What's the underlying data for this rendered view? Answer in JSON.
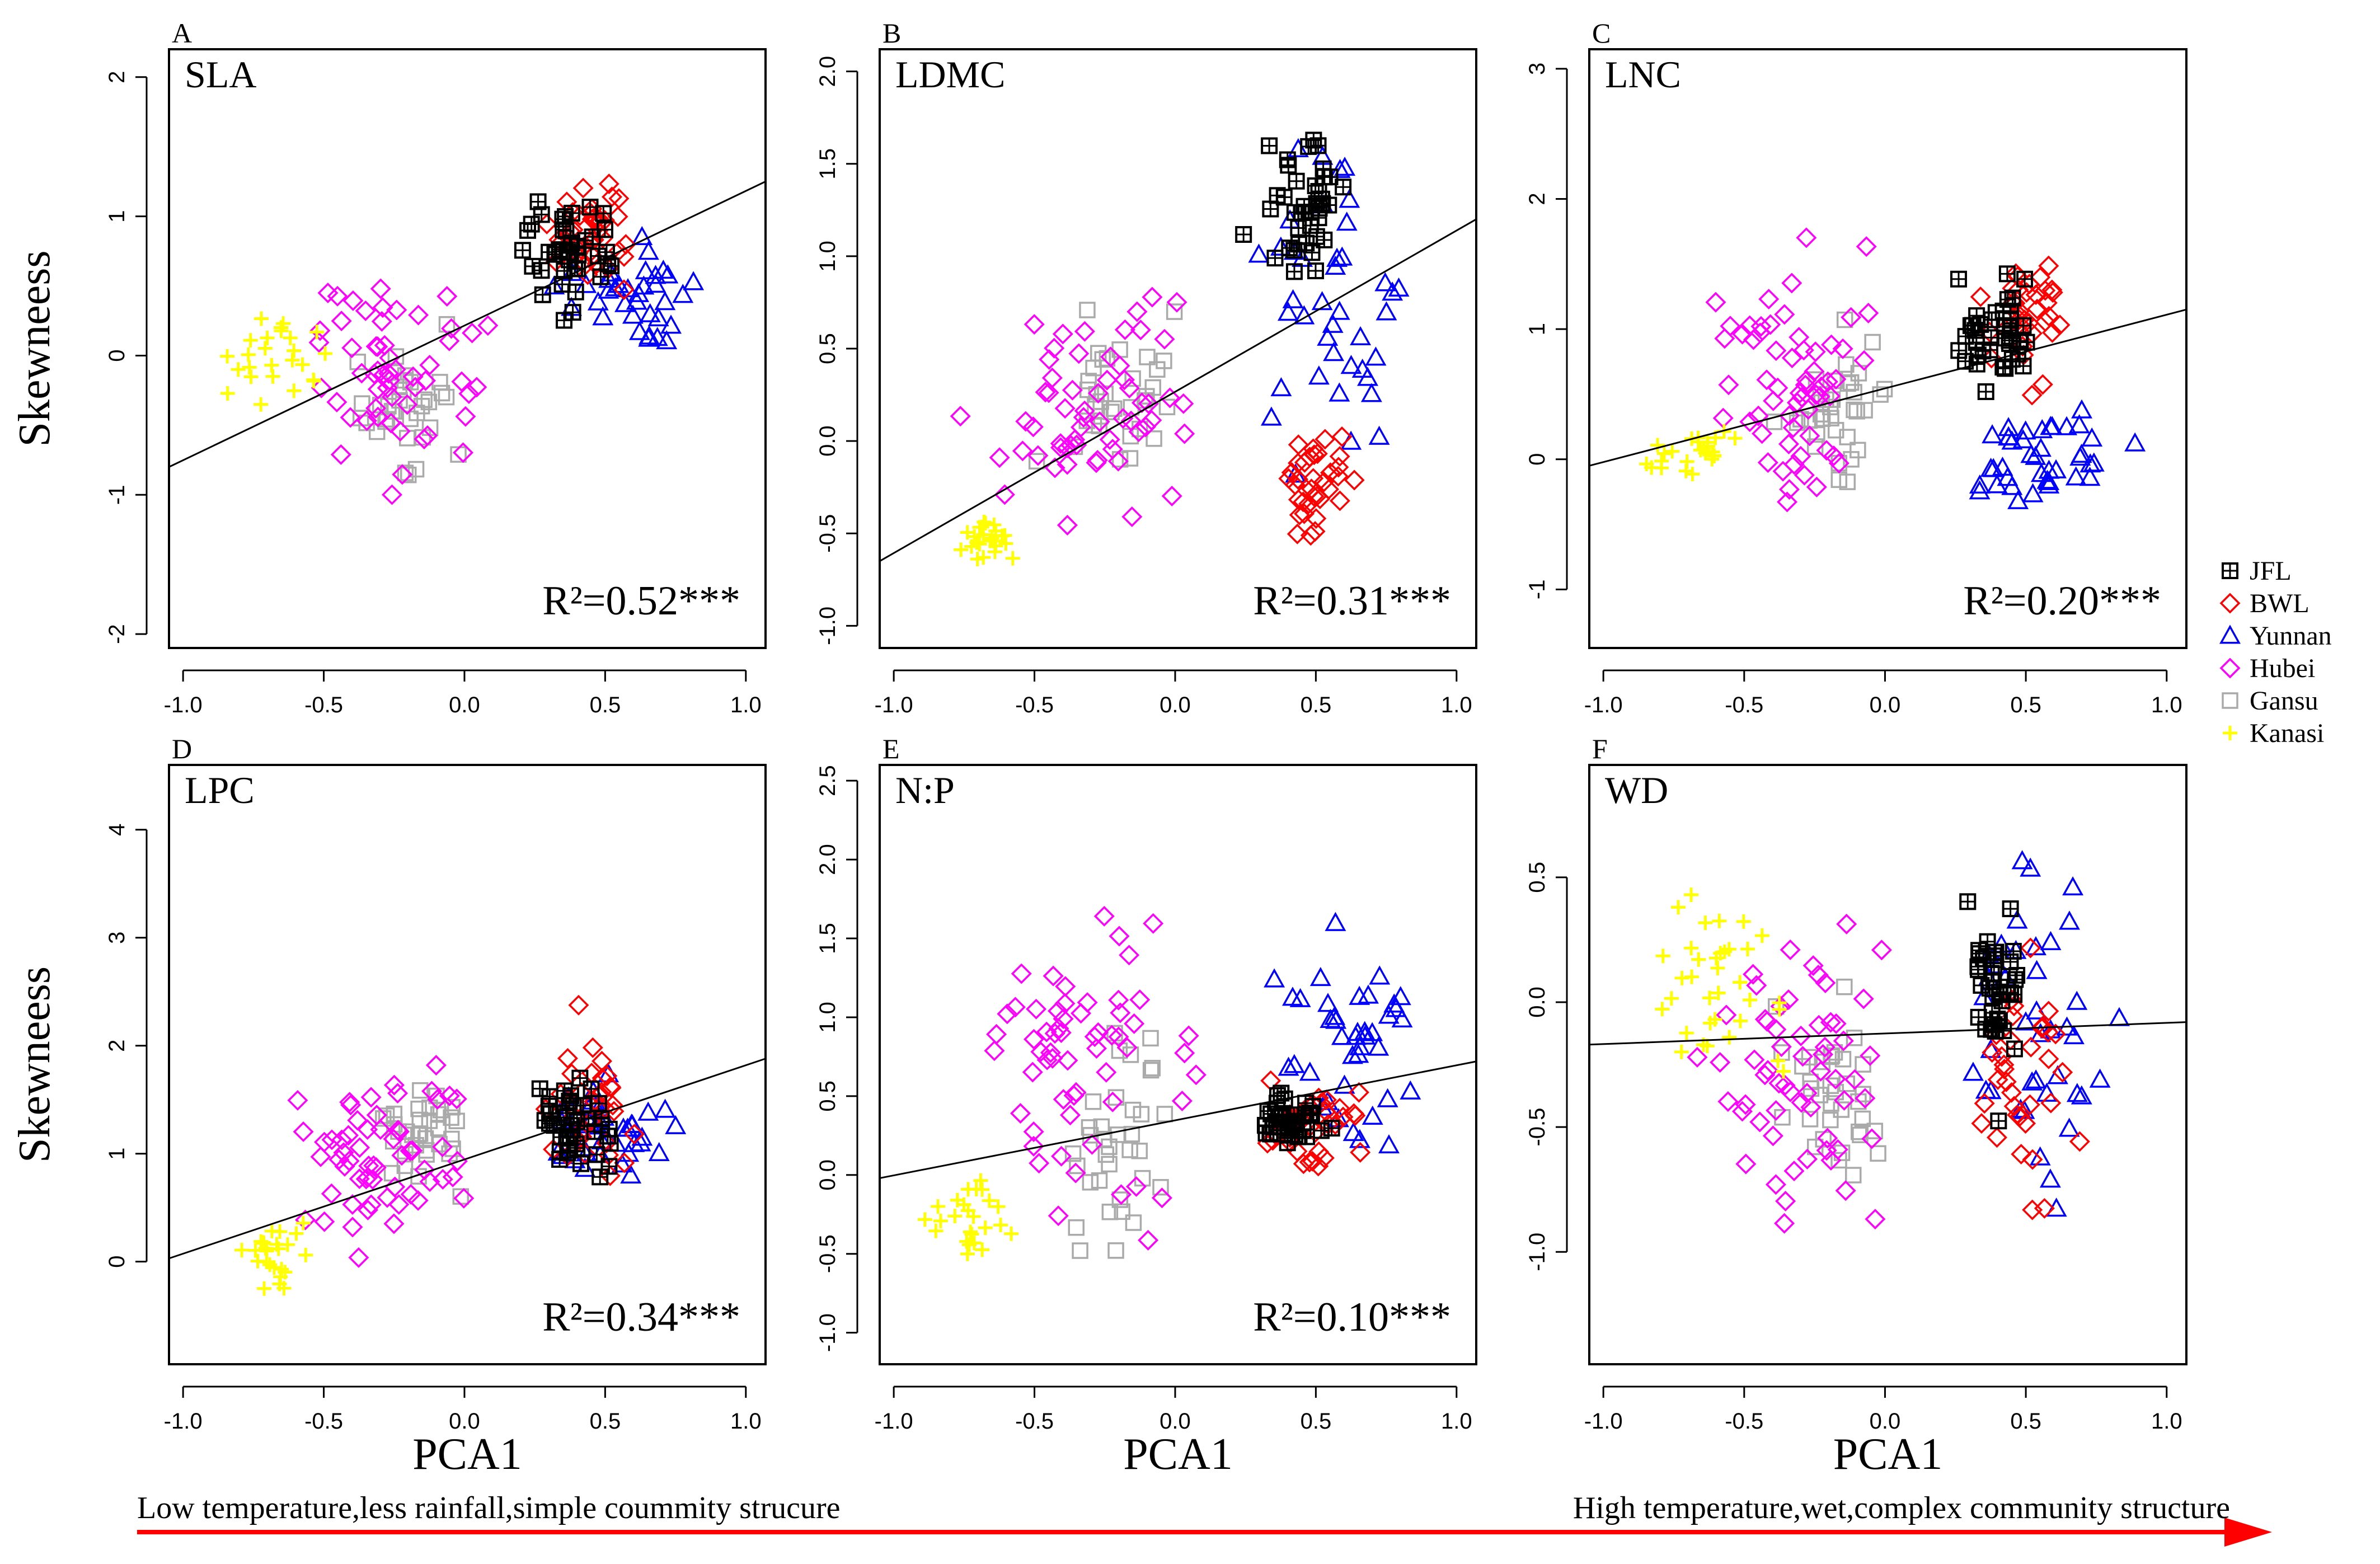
{
  "figure": {
    "ylabel": "Skewneess",
    "xlabel": "PCA1",
    "gradient_left": "Low temperature,less rainfall,simple coummity strucure",
    "gradient_right": "High temperature,wet,complex community structure",
    "arrow_color": "#ff0000"
  },
  "legend": [
    {
      "name": "JFL",
      "marker": "boxplus",
      "color": "#000000"
    },
    {
      "name": "BWL",
      "marker": "diamond",
      "color": "#ff0000"
    },
    {
      "name": "Yunnan",
      "marker": "triangle",
      "color": "#0000ff"
    },
    {
      "name": "Hubei",
      "marker": "diamond",
      "color": "#ff00ff"
    },
    {
      "name": "Gansu",
      "marker": "square",
      "color": "#aaaaaa"
    },
    {
      "name": "Kanasi",
      "marker": "plus",
      "color": "#ffff00"
    }
  ],
  "chart_data": [
    {
      "type": "scatter",
      "letter": "A",
      "title": "SLA",
      "r2_text": "R²=0.52***",
      "xlim": [
        -1.05,
        1.07
      ],
      "ylim": [
        -2.1,
        2.2
      ],
      "xticks": [
        "-1.0",
        "-0.5",
        "0.0",
        "0.5",
        "1.0"
      ],
      "yticks": [
        "-2",
        "-1",
        "0",
        "1",
        "2"
      ],
      "ylabel": "Skewneess",
      "xlabel": "",
      "fit": {
        "x": [
          -1.05,
          1.07
        ],
        "y": [
          -0.8,
          1.25
        ]
      },
      "groups": {
        "Kanasi": {
          "cx": -0.7,
          "cy": 0.0,
          "sx": 0.14,
          "sy": 0.28,
          "n": 25
        },
        "Hubei": {
          "cx": -0.25,
          "cy": -0.1,
          "sx": 0.2,
          "sy": 0.5,
          "n": 55
        },
        "Gansu": {
          "cx": -0.2,
          "cy": -0.4,
          "sx": 0.12,
          "sy": 0.3,
          "n": 35
        },
        "JFL": {
          "cx": 0.38,
          "cy": 0.8,
          "sx": 0.1,
          "sy": 0.28,
          "n": 40
        },
        "BWL": {
          "cx": 0.45,
          "cy": 0.85,
          "sx": 0.1,
          "sy": 0.3,
          "n": 40
        },
        "Yunnan": {
          "cx": 0.6,
          "cy": 0.45,
          "sx": 0.15,
          "sy": 0.28,
          "n": 35
        }
      }
    },
    {
      "type": "scatter",
      "letter": "B",
      "title": "LDMC",
      "r2_text": "R²=0.31***",
      "xlim": [
        -1.05,
        1.07
      ],
      "ylim": [
        -1.12,
        2.12
      ],
      "xticks": [
        "-1.0",
        "-0.5",
        "0.0",
        "0.5",
        "1.0"
      ],
      "yticks": [
        "-1.0",
        "-0.5",
        "0.0",
        "0.5",
        "1.0",
        "1.5",
        "2.0"
      ],
      "ylabel": "",
      "xlabel": "",
      "fit": {
        "x": [
          -1.05,
          1.07
        ],
        "y": [
          -0.65,
          1.2
        ]
      },
      "groups": {
        "Kanasi": {
          "cx": -0.68,
          "cy": -0.55,
          "sx": 0.1,
          "sy": 0.12,
          "n": 25
        },
        "Hubei": {
          "cx": -0.3,
          "cy": 0.15,
          "sx": 0.22,
          "sy": 0.4,
          "n": 60
        },
        "Gansu": {
          "cx": -0.2,
          "cy": 0.2,
          "sx": 0.15,
          "sy": 0.35,
          "n": 35
        },
        "JFL": {
          "cx": 0.45,
          "cy": 1.3,
          "sx": 0.1,
          "sy": 0.25,
          "n": 40
        },
        "BWL": {
          "cx": 0.5,
          "cy": -0.25,
          "sx": 0.08,
          "sy": 0.2,
          "n": 35
        },
        "Yunnan": {
          "cx": 0.55,
          "cy": 0.8,
          "sx": 0.17,
          "sy": 0.6,
          "n": 40
        }
      }
    },
    {
      "type": "scatter",
      "letter": "C",
      "title": "LNC",
      "r2_text": "R²=0.20***",
      "xlim": [
        -1.05,
        1.07
      ],
      "ylim": [
        -1.45,
        3.15
      ],
      "xticks": [
        "-1.0",
        "-0.5",
        "0.0",
        "0.5",
        "1.0"
      ],
      "yticks": [
        "-1",
        "0",
        "1",
        "2",
        "3"
      ],
      "ylabel": "",
      "xlabel": "",
      "fit": {
        "x": [
          -1.05,
          1.07
        ],
        "y": [
          -0.05,
          1.15
        ]
      },
      "groups": {
        "Kanasi": {
          "cx": -0.7,
          "cy": 0.05,
          "sx": 0.12,
          "sy": 0.12,
          "n": 25
        },
        "Hubei": {
          "cx": -0.3,
          "cy": 0.6,
          "sx": 0.2,
          "sy": 0.6,
          "n": 60
        },
        "Gansu": {
          "cx": -0.2,
          "cy": 0.4,
          "sx": 0.13,
          "sy": 0.35,
          "n": 35
        },
        "JFL": {
          "cx": 0.4,
          "cy": 1.05,
          "sx": 0.1,
          "sy": 0.25,
          "n": 40
        },
        "BWL": {
          "cx": 0.5,
          "cy": 1.1,
          "sx": 0.1,
          "sy": 0.3,
          "n": 35
        },
        "Yunnan": {
          "cx": 0.55,
          "cy": 0.0,
          "sx": 0.17,
          "sy": 0.25,
          "n": 40
        }
      }
    },
    {
      "type": "scatter",
      "letter": "D",
      "title": "LPC",
      "r2_text": "R²=0.34***",
      "xlim": [
        -1.05,
        1.07
      ],
      "ylim": [
        -0.95,
        4.6
      ],
      "xticks": [
        "-1.0",
        "-0.5",
        "0.0",
        "0.5",
        "1.0"
      ],
      "yticks": [
        "0",
        "1",
        "2",
        "3",
        "4"
      ],
      "ylabel": "Skewneess",
      "xlabel": "PCA1",
      "fit": {
        "x": [
          -1.05,
          1.07
        ],
        "y": [
          0.03,
          1.88
        ]
      },
      "groups": {
        "Kanasi": {
          "cx": -0.7,
          "cy": 0.1,
          "sx": 0.1,
          "sy": 0.22,
          "n": 25
        },
        "Hubei": {
          "cx": -0.3,
          "cy": 0.9,
          "sx": 0.2,
          "sy": 0.6,
          "n": 60
        },
        "Gansu": {
          "cx": -0.15,
          "cy": 1.2,
          "sx": 0.12,
          "sy": 0.3,
          "n": 35
        },
        "JFL": {
          "cx": 0.4,
          "cy": 1.3,
          "sx": 0.1,
          "sy": 0.3,
          "n": 40
        },
        "BWL": {
          "cx": 0.45,
          "cy": 1.4,
          "sx": 0.1,
          "sy": 0.45,
          "n": 35
        },
        "Yunnan": {
          "cx": 0.5,
          "cy": 1.15,
          "sx": 0.15,
          "sy": 0.3,
          "n": 40
        }
      }
    },
    {
      "type": "scatter",
      "letter": "E",
      "title": "N:P",
      "r2_text": "R²=0.10***",
      "xlim": [
        -1.05,
        1.07
      ],
      "ylim": [
        -1.2,
        2.6
      ],
      "xticks": [
        "-1.0",
        "-0.5",
        "0.0",
        "0.5",
        "1.0"
      ],
      "yticks": [
        "-1.0",
        "-0.5",
        "0.0",
        "0.5",
        "1.0",
        "1.5",
        "2.0",
        "2.5"
      ],
      "ylabel": "",
      "xlabel": "PCA1",
      "fit": {
        "x": [
          -1.05,
          1.07
        ],
        "y": [
          -0.02,
          0.72
        ]
      },
      "groups": {
        "Kanasi": {
          "cx": -0.7,
          "cy": -0.3,
          "sx": 0.1,
          "sy": 0.2,
          "n": 25
        },
        "Hubei": {
          "cx": -0.35,
          "cy": 0.8,
          "sx": 0.22,
          "sy": 0.65,
          "n": 60
        },
        "Gansu": {
          "cx": -0.2,
          "cy": 0.2,
          "sx": 0.15,
          "sy": 0.5,
          "n": 35
        },
        "JFL": {
          "cx": 0.42,
          "cy": 0.35,
          "sx": 0.08,
          "sy": 0.1,
          "n": 40
        },
        "BWL": {
          "cx": 0.48,
          "cy": 0.3,
          "sx": 0.1,
          "sy": 0.2,
          "n": 35
        },
        "Yunnan": {
          "cx": 0.6,
          "cy": 0.8,
          "sx": 0.17,
          "sy": 0.45,
          "n": 40
        }
      }
    },
    {
      "type": "scatter",
      "letter": "F",
      "title": "WD",
      "r2_text": "",
      "xlim": [
        -1.05,
        1.07
      ],
      "ylim": [
        -1.45,
        0.95
      ],
      "xticks": [
        "-1.0",
        "-0.5",
        "0.0",
        "0.5",
        "1.0"
      ],
      "yticks": [
        "-1.0",
        "-0.5",
        "0.0",
        "0.5"
      ],
      "ylabel": "",
      "xlabel": "PCA1",
      "fit": {
        "x": [
          -1.05,
          1.07
        ],
        "y": [
          -0.17,
          -0.08
        ]
      },
      "groups": {
        "Kanasi": {
          "cx": -0.6,
          "cy": 0.05,
          "sx": 0.15,
          "sy": 0.3,
          "n": 35
        },
        "Hubei": {
          "cx": -0.3,
          "cy": -0.3,
          "sx": 0.2,
          "sy": 0.4,
          "n": 60
        },
        "Gansu": {
          "cx": -0.2,
          "cy": -0.4,
          "sx": 0.13,
          "sy": 0.25,
          "n": 35
        },
        "JFL": {
          "cx": 0.4,
          "cy": 0.1,
          "sx": 0.08,
          "sy": 0.3,
          "n": 40
        },
        "BWL": {
          "cx": 0.48,
          "cy": -0.3,
          "sx": 0.1,
          "sy": 0.35,
          "n": 35
        },
        "Yunnan": {
          "cx": 0.55,
          "cy": -0.1,
          "sx": 0.17,
          "sy": 0.4,
          "n": 40
        }
      }
    }
  ]
}
